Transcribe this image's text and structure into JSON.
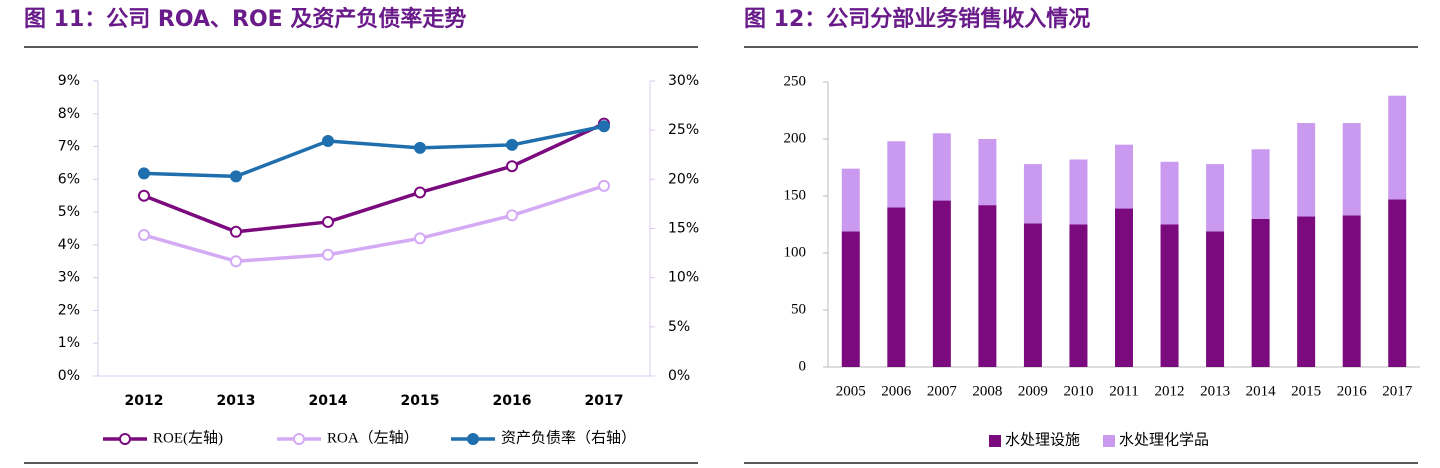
{
  "chart_data": [
    {
      "type": "line",
      "title": "图 11：公司 ROA、ROE 及资产负债率走势",
      "categories": [
        "2012",
        "2013",
        "2014",
        "2015",
        "2016",
        "2017"
      ],
      "series": [
        {
          "name": "ROE(左轴)",
          "color": "#7b0a7e",
          "marker": "hollow",
          "values": [
            5.5,
            4.4,
            4.7,
            5.6,
            6.4,
            7.7
          ]
        },
        {
          "name": "ROA（左轴）",
          "color": "#d4aaf5",
          "marker": "hollow",
          "values": [
            4.3,
            3.5,
            3.7,
            4.2,
            4.9,
            5.8
          ]
        },
        {
          "name": "资产负债率（右轴）",
          "color": "#1f6fae",
          "marker": "filled",
          "axis": "y2",
          "values": [
            20.6,
            20.3,
            23.9,
            23.2,
            23.5,
            25.4
          ]
        }
      ],
      "ylim": [
        0,
        9
      ],
      "yticks": [
        {
          "value": 0,
          "label": "0%"
        },
        {
          "value": 1,
          "label": "1%"
        },
        {
          "value": 2,
          "label": "2%"
        },
        {
          "value": 3,
          "label": "3%"
        },
        {
          "value": 4,
          "label": "4%"
        },
        {
          "value": 5,
          "label": "5%"
        },
        {
          "value": 6,
          "label": "6%"
        },
        {
          "value": 7,
          "label": "7%"
        },
        {
          "value": 8,
          "label": "8%"
        },
        {
          "value": 9,
          "label": "9%"
        }
      ],
      "y2lim": [
        0,
        30
      ],
      "y2ticks": [
        {
          "value": 0,
          "label": "0%"
        },
        {
          "value": 5,
          "label": "5%"
        },
        {
          "value": 10,
          "label": "10%"
        },
        {
          "value": 15,
          "label": "15%"
        },
        {
          "value": 20,
          "label": "20%"
        },
        {
          "value": 25,
          "label": "25%"
        },
        {
          "value": 30,
          "label": "30%"
        }
      ],
      "legend": "bottom"
    },
    {
      "type": "bar",
      "title": "图 12：公司分部业务销售收入情况",
      "stacked": true,
      "categories": [
        "2005",
        "2006",
        "2007",
        "2008",
        "2009",
        "2010",
        "2011",
        "2012",
        "2013",
        "2014",
        "2015",
        "2016",
        "2017"
      ],
      "series": [
        {
          "name": "水处理设施",
          "color": "#7b0a7e",
          "values": [
            119,
            140,
            146,
            142,
            126,
            125,
            139,
            125,
            119,
            130,
            132,
            133,
            147
          ]
        },
        {
          "name": "水处理化学品",
          "color": "#c99af0",
          "values": [
            55,
            58,
            59,
            58,
            52,
            57,
            56,
            55,
            59,
            61,
            82,
            81,
            91
          ]
        }
      ],
      "ylim": [
        0,
        250
      ],
      "yticks": [
        0,
        50,
        100,
        150,
        200,
        250
      ],
      "legend": "bottom"
    }
  ]
}
